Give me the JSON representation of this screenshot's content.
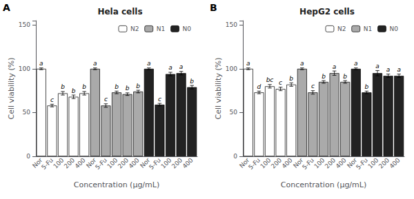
{
  "chart_data": [
    {
      "type": "bar",
      "title": "Hela cells",
      "annotations": [
        "A"
      ],
      "xlabel": "Concentration (μg/mL)",
      "ylabel": "Cell viability (%)",
      "categories": [
        "Nor",
        "5-Fu",
        "100",
        "200",
        "400",
        "Nor",
        "5-Fu",
        "100",
        "200",
        "400",
        "Nor",
        "5-Fu",
        "100",
        "200",
        "400"
      ],
      "series": [
        {
          "name": "N2",
          "color": "#ffffff",
          "values": [
            100,
            58,
            72,
            68,
            72,
            null,
            null,
            null,
            null,
            null,
            null,
            null,
            null,
            null,
            null
          ],
          "errors": [
            1.0,
            1.5,
            2.0,
            2.0,
            2.0,
            null,
            null,
            null,
            null,
            null,
            null,
            null,
            null,
            null,
            null
          ],
          "letters": [
            "a",
            "c",
            "b",
            "b",
            "b",
            null,
            null,
            null,
            null,
            null,
            null,
            null,
            null,
            null,
            null
          ]
        },
        {
          "name": "N1",
          "color": "#aaaaaa",
          "values": [
            null,
            null,
            null,
            null,
            null,
            100,
            58,
            73,
            71,
            74,
            null,
            null,
            null,
            null,
            null
          ],
          "errors": [
            null,
            null,
            null,
            null,
            null,
            1.0,
            2.0,
            1.5,
            1.5,
            1.5,
            null,
            null,
            null,
            null,
            null
          ],
          "letters": [
            null,
            null,
            null,
            null,
            null,
            "a",
            "c",
            "b",
            "b",
            "b",
            null,
            null,
            null,
            null,
            null
          ]
        },
        {
          "name": "N0",
          "color": "#222222",
          "values": [
            null,
            null,
            null,
            null,
            null,
            null,
            null,
            null,
            null,
            null,
            100,
            59,
            94,
            95,
            79
          ],
          "errors": [
            null,
            null,
            null,
            null,
            null,
            null,
            null,
            null,
            null,
            null,
            1.0,
            1.5,
            2.0,
            2.0,
            2.0
          ],
          "letters": [
            null,
            null,
            null,
            null,
            null,
            null,
            null,
            null,
            null,
            null,
            "a",
            "c",
            "a",
            "a",
            "b"
          ]
        }
      ],
      "ylim": [
        0,
        155
      ],
      "yticks": [
        0,
        50,
        100,
        150
      ],
      "grid": false,
      "legend": "upper right"
    },
    {
      "type": "bar",
      "title": "HepG2 cells",
      "annotations": [
        "B"
      ],
      "xlabel": "Concentration (μg/mL)",
      "ylabel": "Cell viability (%)",
      "categories": [
        "Nor",
        "5-Fu",
        "100",
        "200",
        "400",
        "Nor",
        "5-Fu",
        "100",
        "200",
        "400",
        "Nor",
        "5-Fu",
        "100",
        "200",
        "400"
      ],
      "series": [
        {
          "name": "N2",
          "color": "#ffffff",
          "values": [
            100,
            73,
            80,
            77,
            82,
            null,
            null,
            null,
            null,
            null,
            null,
            null,
            null,
            null,
            null
          ],
          "errors": [
            1.0,
            1.5,
            2.0,
            2.0,
            2.0,
            null,
            null,
            null,
            null,
            null,
            null,
            null,
            null,
            null,
            null
          ],
          "letters": [
            "a",
            "d",
            "bc",
            "c",
            "b",
            null,
            null,
            null,
            null,
            null,
            null,
            null,
            null,
            null,
            null
          ]
        },
        {
          "name": "N1",
          "color": "#aaaaaa",
          "values": [
            null,
            null,
            null,
            null,
            null,
            100,
            73,
            85,
            95,
            85,
            null,
            null,
            null,
            null,
            null
          ],
          "errors": [
            null,
            null,
            null,
            null,
            null,
            1.0,
            2.0,
            1.5,
            2.5,
            1.5,
            null,
            null,
            null,
            null,
            null
          ],
          "letters": [
            null,
            null,
            null,
            null,
            null,
            "a",
            "c",
            "b",
            "a",
            "b",
            null,
            null,
            null,
            null,
            null
          ]
        },
        {
          "name": "N0",
          "color": "#222222",
          "values": [
            null,
            null,
            null,
            null,
            null,
            null,
            null,
            null,
            null,
            null,
            100,
            73,
            95,
            92,
            92
          ],
          "errors": [
            null,
            null,
            null,
            null,
            null,
            null,
            null,
            null,
            null,
            null,
            1.0,
            1.5,
            3.0,
            2.0,
            2.0
          ],
          "letters": [
            null,
            null,
            null,
            null,
            null,
            null,
            null,
            null,
            null,
            null,
            "a",
            "b",
            "a",
            "a",
            "a"
          ]
        }
      ],
      "ylim": [
        0,
        155
      ],
      "yticks": [
        0,
        50,
        100,
        150
      ],
      "grid": false,
      "legend": "upper right"
    }
  ]
}
